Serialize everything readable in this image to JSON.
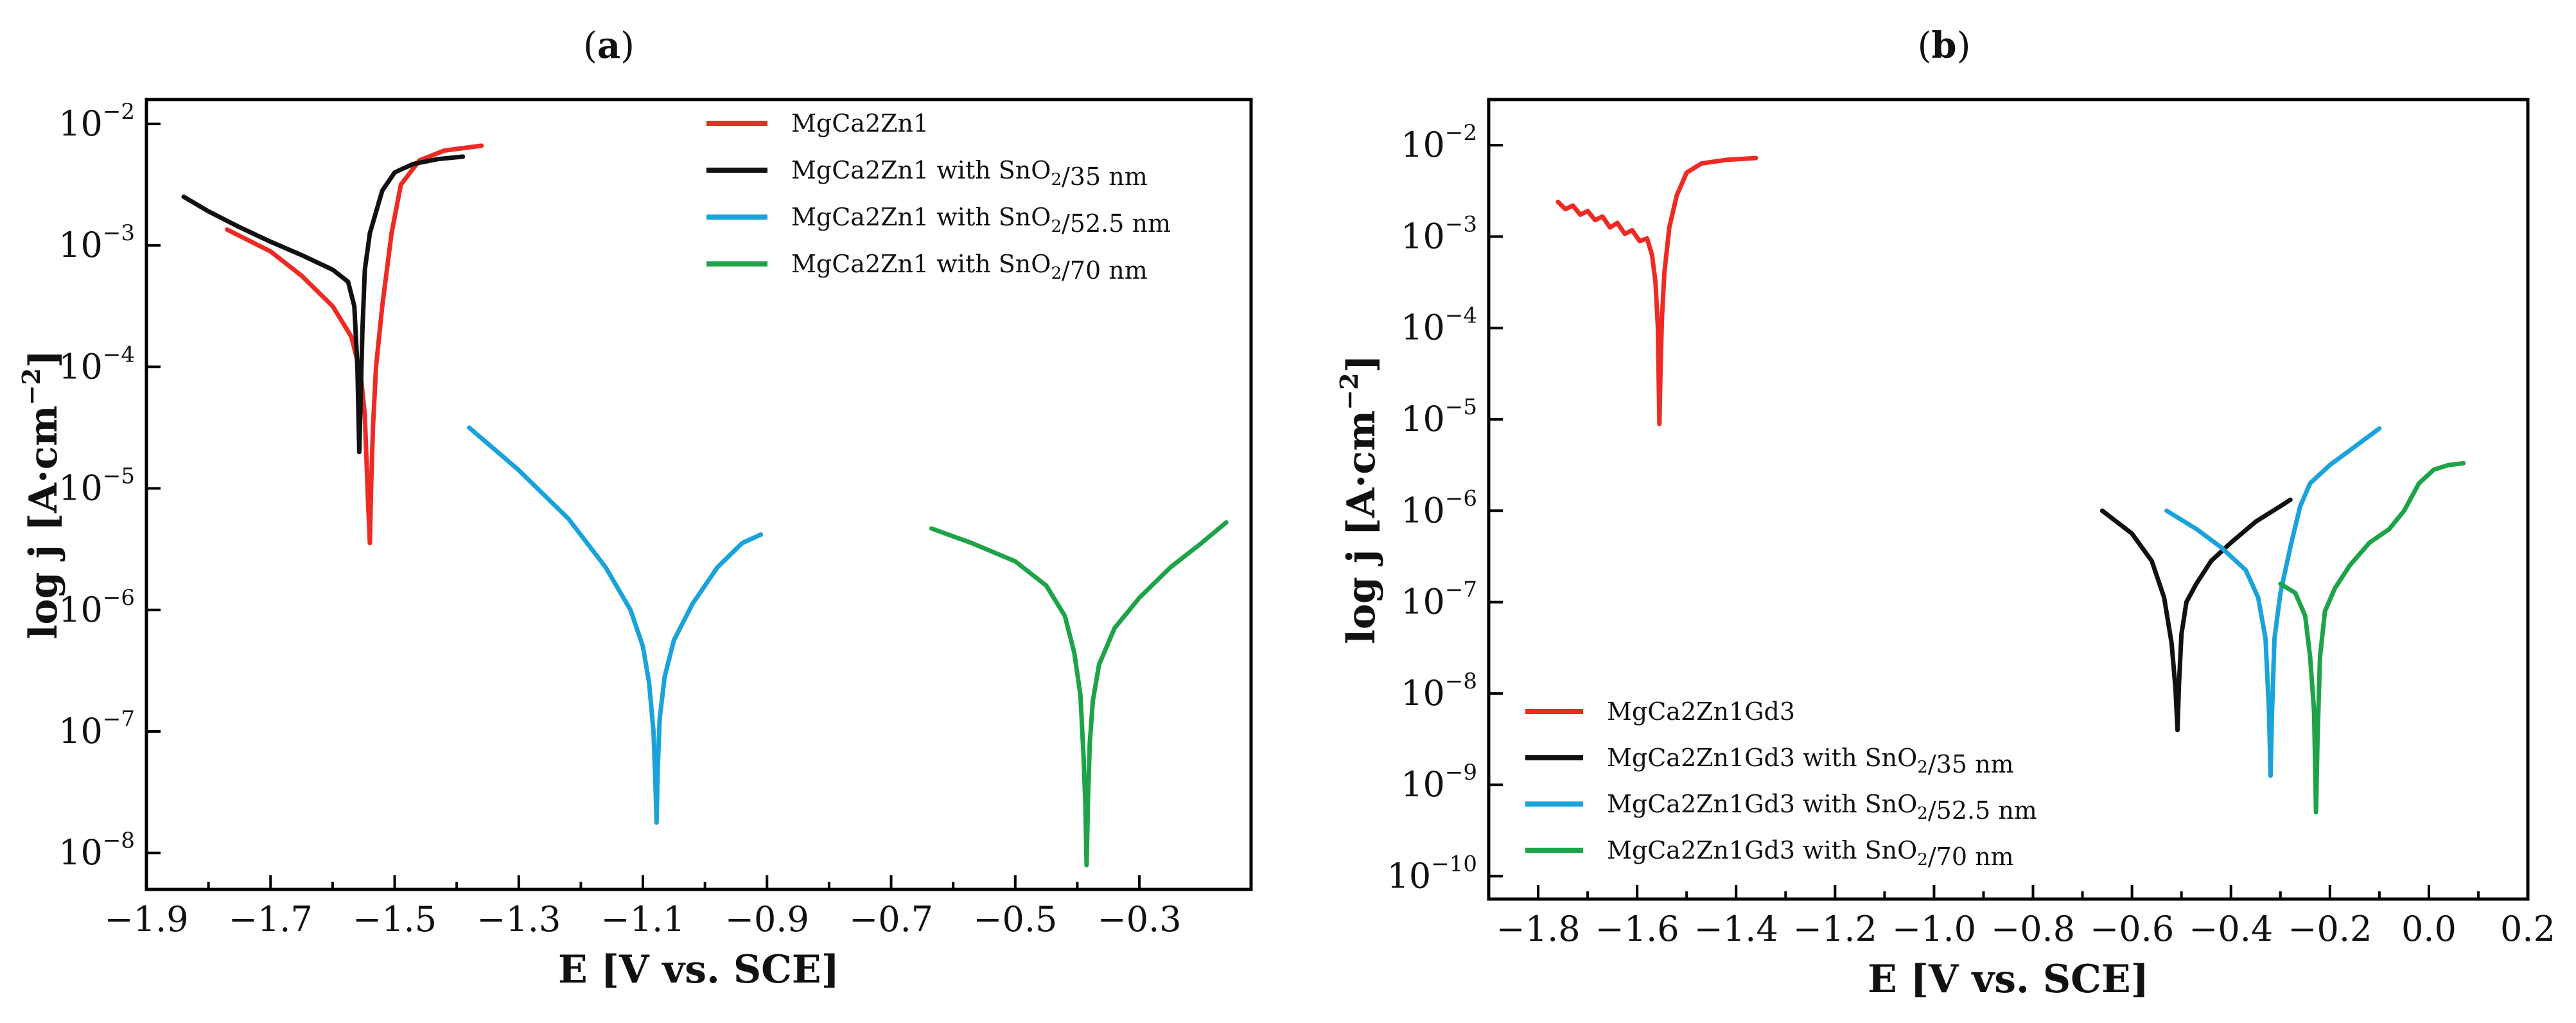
{
  "chart_data": [
    {
      "panel_label": "(a)",
      "type": "line",
      "xlabel": "E [V vs. SCE]",
      "ylabel": "log j [A·cm−2]",
      "xlim": [
        -1.9,
        -0.12
      ],
      "ylim_exp": [
        -8.3,
        -1.8
      ],
      "y_scale": "log",
      "x_ticks": [
        -1.9,
        -1.7,
        -1.5,
        -1.3,
        -1.1,
        -0.9,
        -0.7,
        -0.5,
        -0.3
      ],
      "x_tick_labels": [
        "−1.9",
        "−1.7",
        "−1.5",
        "−1.3",
        "−1.1",
        "−0.9",
        "−0.7",
        "−0.5",
        "−0.3"
      ],
      "y_ticks": [
        {
          "base": "10",
          "exp": "−2",
          "value": -2
        },
        {
          "base": "10",
          "exp": "−3",
          "value": -3
        },
        {
          "base": "10",
          "exp": "−4",
          "value": -4
        },
        {
          "base": "10",
          "exp": "−5",
          "value": -5
        },
        {
          "base": "10",
          "exp": "−6",
          "value": -6
        },
        {
          "base": "10",
          "exp": "−7",
          "value": -7
        },
        {
          "base": "10",
          "exp": "−8",
          "value": -8
        }
      ],
      "legend_position": "top-right",
      "series": [
        {
          "name": "MgCa2Zn1",
          "color": "#ee2a24",
          "points": [
            [
              -1.77,
              -2.87
            ],
            [
              -1.7,
              -3.05
            ],
            [
              -1.65,
              -3.25
            ],
            [
              -1.6,
              -3.5
            ],
            [
              -1.57,
              -3.75
            ],
            [
              -1.555,
              -4.05
            ],
            [
              -1.548,
              -4.4
            ],
            [
              -1.543,
              -5.1
            ],
            [
              -1.54,
              -5.45
            ],
            [
              -1.538,
              -5.0
            ],
            [
              -1.535,
              -4.5
            ],
            [
              -1.53,
              -4.0
            ],
            [
              -1.52,
              -3.5
            ],
            [
              -1.505,
              -2.9
            ],
            [
              -1.49,
              -2.5
            ],
            [
              -1.46,
              -2.3
            ],
            [
              -1.42,
              -2.22
            ],
            [
              -1.36,
              -2.18
            ]
          ]
        },
        {
          "name": "MgCa2Zn1 with SnO2/35 nm",
          "color": "#111111",
          "points": [
            [
              -1.84,
              -2.6
            ],
            [
              -1.8,
              -2.72
            ],
            [
              -1.75,
              -2.85
            ],
            [
              -1.7,
              -2.97
            ],
            [
              -1.65,
              -3.08
            ],
            [
              -1.6,
              -3.2
            ],
            [
              -1.575,
              -3.3
            ],
            [
              -1.565,
              -3.5
            ],
            [
              -1.56,
              -4.0
            ],
            [
              -1.557,
              -4.7
            ],
            [
              -1.555,
              -4.3
            ],
            [
              -1.552,
              -3.7
            ],
            [
              -1.548,
              -3.2
            ],
            [
              -1.54,
              -2.9
            ],
            [
              -1.52,
              -2.55
            ],
            [
              -1.5,
              -2.4
            ],
            [
              -1.47,
              -2.33
            ],
            [
              -1.43,
              -2.29
            ],
            [
              -1.39,
              -2.27
            ]
          ]
        },
        {
          "name": "MgCa2Zn1 with SnO2/52.5 nm",
          "color": "#1aa3db",
          "points": [
            [
              -1.38,
              -4.5
            ],
            [
              -1.3,
              -4.85
            ],
            [
              -1.22,
              -5.25
            ],
            [
              -1.16,
              -5.65
            ],
            [
              -1.12,
              -6.0
            ],
            [
              -1.1,
              -6.3
            ],
            [
              -1.09,
              -6.6
            ],
            [
              -1.083,
              -7.0
            ],
            [
              -1.08,
              -7.4
            ],
            [
              -1.078,
              -7.75
            ],
            [
              -1.076,
              -7.3
            ],
            [
              -1.073,
              -6.9
            ],
            [
              -1.065,
              -6.55
            ],
            [
              -1.05,
              -6.25
            ],
            [
              -1.02,
              -5.95
            ],
            [
              -0.98,
              -5.65
            ],
            [
              -0.94,
              -5.45
            ],
            [
              -0.91,
              -5.38
            ]
          ]
        },
        {
          "name": "MgCa2Zn1 with SnO2/70 nm",
          "color": "#1ea349",
          "points": [
            [
              -0.635,
              -5.33
            ],
            [
              -0.57,
              -5.45
            ],
            [
              -0.5,
              -5.6
            ],
            [
              -0.45,
              -5.8
            ],
            [
              -0.42,
              -6.05
            ],
            [
              -0.405,
              -6.35
            ],
            [
              -0.395,
              -6.7
            ],
            [
              -0.39,
              -7.2
            ],
            [
              -0.387,
              -7.6
            ],
            [
              -0.385,
              -8.1
            ],
            [
              -0.383,
              -7.6
            ],
            [
              -0.38,
              -7.1
            ],
            [
              -0.375,
              -6.75
            ],
            [
              -0.365,
              -6.45
            ],
            [
              -0.34,
              -6.15
            ],
            [
              -0.3,
              -5.9
            ],
            [
              -0.25,
              -5.65
            ],
            [
              -0.2,
              -5.45
            ],
            [
              -0.16,
              -5.28
            ]
          ]
        }
      ]
    },
    {
      "panel_label": "(b)",
      "type": "line",
      "xlabel": "E [V vs. SCE]",
      "ylabel": "log j [A·cm−2]",
      "xlim": [
        -1.9,
        0.2
      ],
      "ylim_exp": [
        -10.25,
        -1.5
      ],
      "y_scale": "log",
      "x_ticks": [
        -1.8,
        -1.6,
        -1.4,
        -1.2,
        -1.0,
        -0.8,
        -0.6,
        -0.4,
        -0.2,
        0.0,
        0.2
      ],
      "x_tick_labels": [
        "−1.8",
        "−1.6",
        "−1.4",
        "−1.2",
        "−1.0",
        "−0.8",
        "−0.6",
        "−0.4",
        "−0.2",
        "0.0",
        "0.2"
      ],
      "y_ticks": [
        {
          "base": "10",
          "exp": "−2",
          "value": -2
        },
        {
          "base": "10",
          "exp": "−3",
          "value": -3
        },
        {
          "base": "10",
          "exp": "−4",
          "value": -4
        },
        {
          "base": "10",
          "exp": "−5",
          "value": -5
        },
        {
          "base": "10",
          "exp": "−6",
          "value": -6
        },
        {
          "base": "10",
          "exp": "−7",
          "value": -7
        },
        {
          "base": "10",
          "exp": "−8",
          "value": -8
        },
        {
          "base": "10",
          "exp": "−9",
          "value": -9
        },
        {
          "base": "10",
          "exp": "−10",
          "value": -10
        }
      ],
      "legend_position": "bottom-left",
      "series": [
        {
          "name": "MgCa2Zn1Gd3",
          "color": "#ee2a24",
          "points": [
            [
              -1.76,
              -2.62
            ],
            [
              -1.745,
              -2.7
            ],
            [
              -1.73,
              -2.66
            ],
            [
              -1.715,
              -2.76
            ],
            [
              -1.7,
              -2.72
            ],
            [
              -1.685,
              -2.82
            ],
            [
              -1.67,
              -2.78
            ],
            [
              -1.655,
              -2.9
            ],
            [
              -1.64,
              -2.85
            ],
            [
              -1.625,
              -2.97
            ],
            [
              -1.61,
              -2.93
            ],
            [
              -1.595,
              -3.05
            ],
            [
              -1.58,
              -3.02
            ],
            [
              -1.57,
              -3.2
            ],
            [
              -1.563,
              -3.5
            ],
            [
              -1.558,
              -4.0
            ],
            [
              -1.555,
              -5.05
            ],
            [
              -1.553,
              -4.5
            ],
            [
              -1.55,
              -3.9
            ],
            [
              -1.545,
              -3.4
            ],
            [
              -1.535,
              -2.9
            ],
            [
              -1.52,
              -2.55
            ],
            [
              -1.5,
              -2.3
            ],
            [
              -1.47,
              -2.2
            ],
            [
              -1.42,
              -2.16
            ],
            [
              -1.36,
              -2.14
            ]
          ]
        },
        {
          "name": "MgCa2Zn1Gd3 with SnO2/35 nm",
          "color": "#111111",
          "points": [
            [
              -0.66,
              -6.0
            ],
            [
              -0.6,
              -6.25
            ],
            [
              -0.56,
              -6.55
            ],
            [
              -0.535,
              -6.95
            ],
            [
              -0.52,
              -7.45
            ],
            [
              -0.512,
              -7.95
            ],
            [
              -0.508,
              -8.4
            ],
            [
              -0.505,
              -7.9
            ],
            [
              -0.5,
              -7.35
            ],
            [
              -0.49,
              -7.0
            ],
            [
              -0.47,
              -6.8
            ],
            [
              -0.44,
              -6.55
            ],
            [
              -0.4,
              -6.35
            ],
            [
              -0.35,
              -6.12
            ],
            [
              -0.3,
              -5.95
            ],
            [
              -0.28,
              -5.88
            ]
          ]
        },
        {
          "name": "MgCa2Zn1Gd3 with SnO2/52.5 nm",
          "color": "#1aa3db",
          "points": [
            [
              -0.53,
              -6.0
            ],
            [
              -0.47,
              -6.2
            ],
            [
              -0.42,
              -6.4
            ],
            [
              -0.37,
              -6.65
            ],
            [
              -0.345,
              -6.95
            ],
            [
              -0.33,
              -7.4
            ],
            [
              -0.323,
              -8.2
            ],
            [
              -0.32,
              -8.9
            ],
            [
              -0.317,
              -8.2
            ],
            [
              -0.312,
              -7.4
            ],
            [
              -0.3,
              -6.9
            ],
            [
              -0.28,
              -6.4
            ],
            [
              -0.26,
              -5.95
            ],
            [
              -0.24,
              -5.7
            ],
            [
              -0.2,
              -5.5
            ],
            [
              -0.15,
              -5.3
            ],
            [
              -0.1,
              -5.1
            ]
          ]
        },
        {
          "name": "MgCa2Zn1Gd3 with SnO2/70 nm",
          "color": "#1ea349",
          "points": [
            [
              -0.3,
              -6.8
            ],
            [
              -0.27,
              -6.9
            ],
            [
              -0.25,
              -7.15
            ],
            [
              -0.24,
              -7.6
            ],
            [
              -0.232,
              -8.2
            ],
            [
              -0.228,
              -9.3
            ],
            [
              -0.225,
              -8.5
            ],
            [
              -0.22,
              -7.6
            ],
            [
              -0.21,
              -7.1
            ],
            [
              -0.19,
              -6.85
            ],
            [
              -0.16,
              -6.6
            ],
            [
              -0.12,
              -6.35
            ],
            [
              -0.08,
              -6.2
            ],
            [
              -0.05,
              -6.0
            ],
            [
              -0.02,
              -5.7
            ],
            [
              0.01,
              -5.55
            ],
            [
              0.04,
              -5.5
            ],
            [
              0.07,
              -5.48
            ]
          ]
        }
      ]
    }
  ]
}
